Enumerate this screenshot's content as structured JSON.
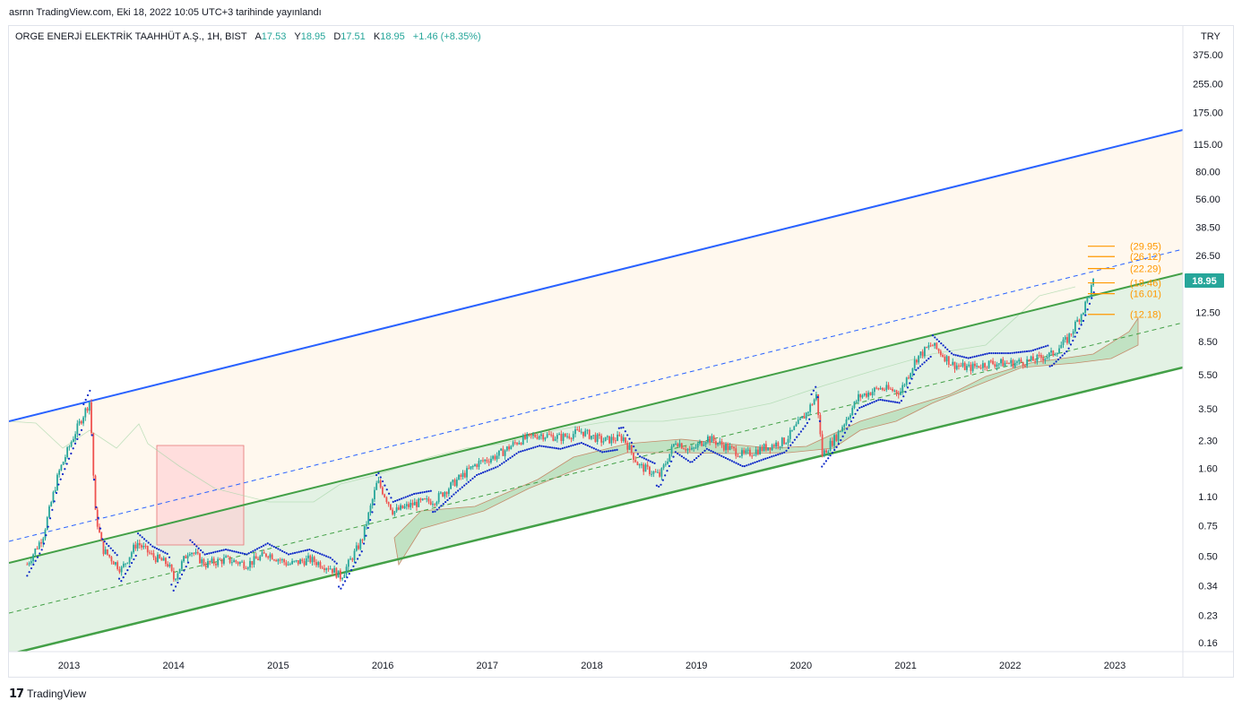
{
  "header": {
    "published": "asrnn TradingView.com, Eki 18, 2022 10:05 UTC+3 tarihinde yayınlandı"
  },
  "legend": {
    "symbol": "ORGE ENERJİ ELEKTRİK TAAHHÜT A.Ş., 1H, BIST",
    "open_label": "A",
    "open_value": "17.53",
    "high_label": "Y",
    "high_value": "18.95",
    "low_label": "D",
    "low_value": "17.51",
    "close_label": "K",
    "close_value": "18.95",
    "change": "+1.46 (+8.35%)"
  },
  "footer": {
    "brand": "TradingView"
  },
  "colors": {
    "up": "#26a69a",
    "down": "#ef5350",
    "blue_line": "#2962ff",
    "green_line": "#43a047",
    "fib": "#ff9800",
    "psar": "#0d28c8",
    "last_price_bg": "#26a69a"
  },
  "chart_data": {
    "type": "line",
    "scale": "log",
    "currency": "TRY",
    "last_price": "18.95",
    "y_ticks": [
      "375.00",
      "255.00",
      "175.00",
      "115.00",
      "80.00",
      "56.00",
      "38.50",
      "26.50",
      "18.95",
      "12.50",
      "8.50",
      "5.50",
      "3.50",
      "2.30",
      "1.60",
      "1.10",
      "0.75",
      "0.50",
      "0.34",
      "0.23",
      "0.16"
    ],
    "x_ticks": [
      "2013",
      "2014",
      "2015",
      "2016",
      "2017",
      "2018",
      "2019",
      "2020",
      "2021",
      "2022",
      "2023"
    ],
    "fib_labels": [
      "(29.95)",
      "(26.12)",
      "(22.29)",
      "(18.46)",
      "(16.01)",
      "(12.18)"
    ],
    "fib_values": [
      29.95,
      26.12,
      22.29,
      18.46,
      16.01,
      12.18
    ],
    "price_series": [
      {
        "t": 2012.6,
        "v": 0.45
      },
      {
        "t": 2012.75,
        "v": 0.65
      },
      {
        "t": 2012.9,
        "v": 1.5
      },
      {
        "t": 2013.05,
        "v": 2.5
      },
      {
        "t": 2013.2,
        "v": 3.9
      },
      {
        "t": 2013.25,
        "v": 0.9
      },
      {
        "t": 2013.32,
        "v": 0.55
      },
      {
        "t": 2013.5,
        "v": 0.42
      },
      {
        "t": 2013.65,
        "v": 0.6
      },
      {
        "t": 2013.8,
        "v": 0.5
      },
      {
        "t": 2013.95,
        "v": 0.45
      },
      {
        "t": 2014.0,
        "v": 0.37
      },
      {
        "t": 2014.15,
        "v": 0.55
      },
      {
        "t": 2014.3,
        "v": 0.45
      },
      {
        "t": 2014.5,
        "v": 0.48
      },
      {
        "t": 2014.7,
        "v": 0.45
      },
      {
        "t": 2014.9,
        "v": 0.52
      },
      {
        "t": 2015.1,
        "v": 0.45
      },
      {
        "t": 2015.3,
        "v": 0.48
      },
      {
        "t": 2015.5,
        "v": 0.43
      },
      {
        "t": 2015.6,
        "v": 0.38
      },
      {
        "t": 2015.8,
        "v": 0.62
      },
      {
        "t": 2015.95,
        "v": 1.35
      },
      {
        "t": 2016.1,
        "v": 0.9
      },
      {
        "t": 2016.3,
        "v": 1.0
      },
      {
        "t": 2016.5,
        "v": 1.05
      },
      {
        "t": 2016.7,
        "v": 1.35
      },
      {
        "t": 2016.9,
        "v": 1.7
      },
      {
        "t": 2017.1,
        "v": 1.9
      },
      {
        "t": 2017.3,
        "v": 2.3
      },
      {
        "t": 2017.5,
        "v": 2.5
      },
      {
        "t": 2017.7,
        "v": 2.4
      },
      {
        "t": 2017.9,
        "v": 2.6
      },
      {
        "t": 2018.1,
        "v": 2.3
      },
      {
        "t": 2018.3,
        "v": 2.4
      },
      {
        "t": 2018.45,
        "v": 1.65
      },
      {
        "t": 2018.65,
        "v": 1.45
      },
      {
        "t": 2018.8,
        "v": 2.3
      },
      {
        "t": 2018.95,
        "v": 2.0
      },
      {
        "t": 2019.1,
        "v": 2.4
      },
      {
        "t": 2019.3,
        "v": 2.1
      },
      {
        "t": 2019.45,
        "v": 1.9
      },
      {
        "t": 2019.65,
        "v": 2.1
      },
      {
        "t": 2019.85,
        "v": 2.3
      },
      {
        "t": 2020.05,
        "v": 3.3
      },
      {
        "t": 2020.15,
        "v": 4.2
      },
      {
        "t": 2020.2,
        "v": 1.9
      },
      {
        "t": 2020.35,
        "v": 2.5
      },
      {
        "t": 2020.55,
        "v": 4.1
      },
      {
        "t": 2020.75,
        "v": 4.6
      },
      {
        "t": 2020.95,
        "v": 4.4
      },
      {
        "t": 2021.1,
        "v": 6.8
      },
      {
        "t": 2021.25,
        "v": 8.2
      },
      {
        "t": 2021.45,
        "v": 6.3
      },
      {
        "t": 2021.6,
        "v": 6.0
      },
      {
        "t": 2021.8,
        "v": 6.4
      },
      {
        "t": 2022.0,
        "v": 6.4
      },
      {
        "t": 2022.2,
        "v": 6.6
      },
      {
        "t": 2022.4,
        "v": 7.2
      },
      {
        "t": 2022.55,
        "v": 8.8
      },
      {
        "t": 2022.7,
        "v": 13.0
      },
      {
        "t": 2022.8,
        "v": 18.95
      }
    ]
  }
}
